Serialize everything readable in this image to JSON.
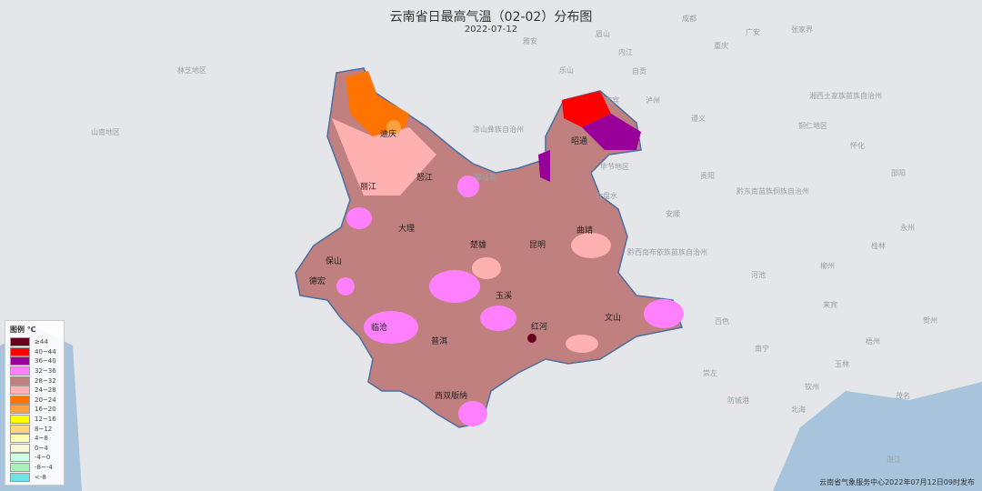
{
  "title": "云南省日最高气温（02-02）分布图",
  "date": "2022-07-12",
  "footer": "云南省气象服务中心2022年07月12日09时发布",
  "legend": {
    "title": "图例 ℃",
    "items": [
      {
        "label": "≥44",
        "color": "#67001f"
      },
      {
        "label": "40~44",
        "color": "#ff0000"
      },
      {
        "label": "36~40",
        "color": "#990099"
      },
      {
        "label": "32~36",
        "color": "#ff80ff"
      },
      {
        "label": "28~32",
        "color": "#c08080"
      },
      {
        "label": "24~28",
        "color": "#ffb0b0"
      },
      {
        "label": "20~24",
        "color": "#ff7300"
      },
      {
        "label": "16~20",
        "color": "#ffa040"
      },
      {
        "label": "12~16",
        "color": "#ffff00"
      },
      {
        "label": "8~12",
        "color": "#ffd87a"
      },
      {
        "label": "4~8",
        "color": "#ffffb0"
      },
      {
        "label": "0~4",
        "color": "#f8f8d8"
      },
      {
        "label": "-4~0",
        "color": "#ccffe0"
      },
      {
        "label": "-8~-4",
        "color": "#aaf0bb"
      },
      {
        "label": "<-8",
        "color": "#70e0e8"
      }
    ]
  },
  "cities": [
    "迪庆",
    "丽江",
    "怒江",
    "大理",
    "保山",
    "德宏",
    "临沧",
    "普洱",
    "西双版纳",
    "楚雄",
    "昆明",
    "曲靖",
    "玉溪",
    "红河",
    "文山",
    "昭通"
  ],
  "background_places": [
    "林芝地区",
    "山南地区",
    "凉山彝族自治州",
    "攀枝花",
    "毕节地区",
    "六盘水",
    "安顺",
    "黔西南布依族苗族自治州",
    "百色",
    "河池",
    "南宁",
    "崇左",
    "防城港",
    "北海",
    "钦州",
    "玉林",
    "梧州",
    "来宾",
    "柳州",
    "桂林",
    "贵阳",
    "遵义",
    "重庆",
    "乐山",
    "宜宾",
    "泸州",
    "内江",
    "自贡",
    "雅安",
    "眉山",
    "成都",
    "广安",
    "张家界",
    "湘西土家族苗族自治州",
    "黔东南苗族侗族自治州",
    "铜仁地区",
    "怀化",
    "邵阳",
    "永州",
    "贺州",
    "湛江",
    "茂名"
  ]
}
